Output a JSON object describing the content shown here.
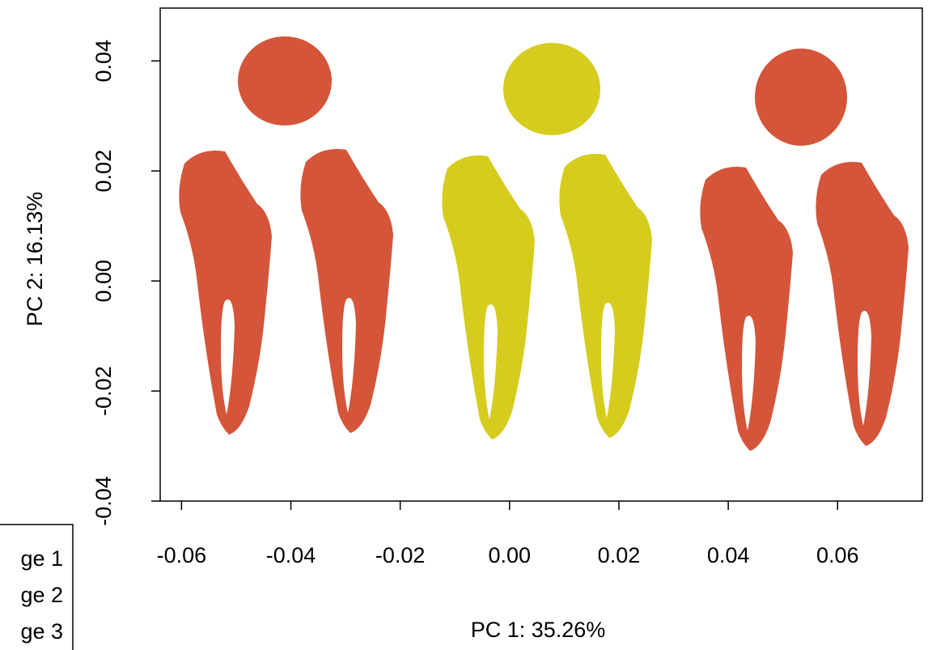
{
  "chart_data": {
    "type": "image-scatter",
    "xlabel": "PC 1: 35.26%",
    "ylabel": "PC 2: 16.13%",
    "xlim": [
      -0.0639,
      0.0755
    ],
    "ylim": [
      -0.04,
      0.0496
    ],
    "xticks": [
      -0.06,
      -0.04,
      -0.02,
      {
        "value": 0,
        "label": "0.00"
      },
      0.02,
      0.04,
      0.06
    ],
    "yticks": [
      -0.04,
      -0.02,
      {
        "value": 0,
        "label": "0.00"
      },
      0.02,
      0.04
    ],
    "legend": {
      "labels": [
        "ge 1",
        "ge 2",
        "ge 3"
      ]
    }
  }
}
